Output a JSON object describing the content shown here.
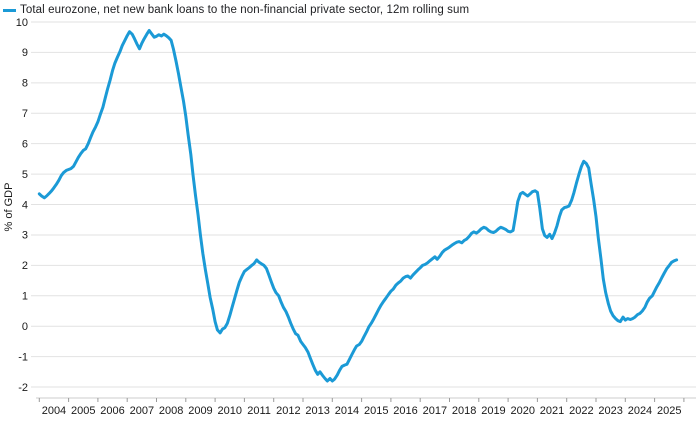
{
  "legend": {
    "label": "Total eurozone, net new bank loans to the non-financial private sector, 12m rolling sum"
  },
  "colors": {
    "line": "#1b9ad6",
    "grid": "#e2e2e2",
    "axis_line": "#cccccc",
    "tick": "#9a9a9a",
    "text": "#1a1a1a",
    "background": "#ffffff"
  },
  "chart_data": {
    "type": "line",
    "title": "Total eurozone, net new bank loans to the non-financial private sector, 12m rolling sum",
    "xlabel": "",
    "ylabel": "% of GDP",
    "xlim": [
      2004,
      2026
    ],
    "ylim": [
      -2,
      10
    ],
    "y_ticks": [
      10,
      9,
      8,
      7,
      6,
      5,
      4,
      3,
      2,
      1,
      0,
      -1,
      -2
    ],
    "x_tick_labels": [
      "2004",
      "2005",
      "2006",
      "2007",
      "2008",
      "2009",
      "2010",
      "2011",
      "2012",
      "2013",
      "2014",
      "2015",
      "2016",
      "2017",
      "2018",
      "2019",
      "2020",
      "2021",
      "2022",
      "2023",
      "2024",
      "2025"
    ],
    "grid": "horizontal",
    "legend_position": "top-left",
    "series": [
      {
        "name": "Total eurozone, net new bank loans to the non-financial private sector, 12m rolling sum",
        "color": "#1b9ad6",
        "points": [
          [
            2004.0,
            4.35
          ],
          [
            2004.08,
            4.28
          ],
          [
            2004.17,
            4.22
          ],
          [
            2004.25,
            4.28
          ],
          [
            2004.33,
            4.36
          ],
          [
            2004.42,
            4.45
          ],
          [
            2004.5,
            4.55
          ],
          [
            2004.58,
            4.66
          ],
          [
            2004.67,
            4.8
          ],
          [
            2004.75,
            4.95
          ],
          [
            2004.83,
            5.05
          ],
          [
            2004.92,
            5.12
          ],
          [
            2005.0,
            5.15
          ],
          [
            2005.08,
            5.18
          ],
          [
            2005.17,
            5.26
          ],
          [
            2005.25,
            5.4
          ],
          [
            2005.33,
            5.55
          ],
          [
            2005.42,
            5.68
          ],
          [
            2005.5,
            5.78
          ],
          [
            2005.58,
            5.83
          ],
          [
            2005.67,
            6.0
          ],
          [
            2005.75,
            6.2
          ],
          [
            2005.83,
            6.38
          ],
          [
            2005.92,
            6.55
          ],
          [
            2006.0,
            6.72
          ],
          [
            2006.08,
            6.95
          ],
          [
            2006.17,
            7.2
          ],
          [
            2006.25,
            7.5
          ],
          [
            2006.33,
            7.8
          ],
          [
            2006.42,
            8.1
          ],
          [
            2006.5,
            8.4
          ],
          [
            2006.58,
            8.65
          ],
          [
            2006.67,
            8.85
          ],
          [
            2006.75,
            9.02
          ],
          [
            2006.83,
            9.22
          ],
          [
            2006.92,
            9.4
          ],
          [
            2007.0,
            9.55
          ],
          [
            2007.08,
            9.68
          ],
          [
            2007.17,
            9.6
          ],
          [
            2007.25,
            9.45
          ],
          [
            2007.33,
            9.28
          ],
          [
            2007.42,
            9.12
          ],
          [
            2007.5,
            9.3
          ],
          [
            2007.58,
            9.45
          ],
          [
            2007.67,
            9.6
          ],
          [
            2007.75,
            9.72
          ],
          [
            2007.83,
            9.62
          ],
          [
            2007.92,
            9.5
          ],
          [
            2008.0,
            9.53
          ],
          [
            2008.08,
            9.58
          ],
          [
            2008.17,
            9.54
          ],
          [
            2008.25,
            9.6
          ],
          [
            2008.33,
            9.55
          ],
          [
            2008.42,
            9.48
          ],
          [
            2008.5,
            9.4
          ],
          [
            2008.58,
            9.1
          ],
          [
            2008.67,
            8.7
          ],
          [
            2008.75,
            8.3
          ],
          [
            2008.83,
            7.88
          ],
          [
            2008.92,
            7.4
          ],
          [
            2009.0,
            6.9
          ],
          [
            2009.08,
            6.3
          ],
          [
            2009.17,
            5.65
          ],
          [
            2009.25,
            4.95
          ],
          [
            2009.33,
            4.3
          ],
          [
            2009.42,
            3.65
          ],
          [
            2009.5,
            3.0
          ],
          [
            2009.58,
            2.4
          ],
          [
            2009.67,
            1.85
          ],
          [
            2009.75,
            1.4
          ],
          [
            2009.83,
            0.95
          ],
          [
            2009.92,
            0.55
          ],
          [
            2010.0,
            0.15
          ],
          [
            2010.08,
            -0.12
          ],
          [
            2010.17,
            -0.22
          ],
          [
            2010.25,
            -0.1
          ],
          [
            2010.33,
            -0.05
          ],
          [
            2010.42,
            0.1
          ],
          [
            2010.5,
            0.35
          ],
          [
            2010.58,
            0.62
          ],
          [
            2010.67,
            0.92
          ],
          [
            2010.75,
            1.2
          ],
          [
            2010.83,
            1.45
          ],
          [
            2010.92,
            1.65
          ],
          [
            2011.0,
            1.8
          ],
          [
            2011.08,
            1.86
          ],
          [
            2011.17,
            1.93
          ],
          [
            2011.25,
            2.0
          ],
          [
            2011.33,
            2.06
          ],
          [
            2011.42,
            2.18
          ],
          [
            2011.5,
            2.1
          ],
          [
            2011.58,
            2.05
          ],
          [
            2011.67,
            2.0
          ],
          [
            2011.75,
            1.9
          ],
          [
            2011.83,
            1.7
          ],
          [
            2011.92,
            1.45
          ],
          [
            2012.0,
            1.25
          ],
          [
            2012.08,
            1.1
          ],
          [
            2012.17,
            1.0
          ],
          [
            2012.25,
            0.8
          ],
          [
            2012.33,
            0.62
          ],
          [
            2012.42,
            0.48
          ],
          [
            2012.5,
            0.3
          ],
          [
            2012.58,
            0.1
          ],
          [
            2012.67,
            -0.1
          ],
          [
            2012.75,
            -0.25
          ],
          [
            2012.83,
            -0.3
          ],
          [
            2012.92,
            -0.5
          ],
          [
            2013.0,
            -0.6
          ],
          [
            2013.08,
            -0.7
          ],
          [
            2013.17,
            -0.85
          ],
          [
            2013.25,
            -1.05
          ],
          [
            2013.33,
            -1.25
          ],
          [
            2013.42,
            -1.45
          ],
          [
            2013.5,
            -1.58
          ],
          [
            2013.58,
            -1.5
          ],
          [
            2013.67,
            -1.62
          ],
          [
            2013.75,
            -1.72
          ],
          [
            2013.83,
            -1.8
          ],
          [
            2013.92,
            -1.72
          ],
          [
            2014.0,
            -1.8
          ],
          [
            2014.08,
            -1.74
          ],
          [
            2014.17,
            -1.6
          ],
          [
            2014.25,
            -1.45
          ],
          [
            2014.33,
            -1.32
          ],
          [
            2014.42,
            -1.28
          ],
          [
            2014.5,
            -1.25
          ],
          [
            2014.58,
            -1.1
          ],
          [
            2014.67,
            -0.93
          ],
          [
            2014.75,
            -0.78
          ],
          [
            2014.83,
            -0.65
          ],
          [
            2014.92,
            -0.6
          ],
          [
            2015.0,
            -0.5
          ],
          [
            2015.08,
            -0.35
          ],
          [
            2015.17,
            -0.18
          ],
          [
            2015.25,
            -0.02
          ],
          [
            2015.33,
            0.1
          ],
          [
            2015.42,
            0.25
          ],
          [
            2015.5,
            0.4
          ],
          [
            2015.58,
            0.55
          ],
          [
            2015.67,
            0.7
          ],
          [
            2015.75,
            0.82
          ],
          [
            2015.83,
            0.92
          ],
          [
            2015.92,
            1.05
          ],
          [
            2016.0,
            1.15
          ],
          [
            2016.08,
            1.22
          ],
          [
            2016.17,
            1.35
          ],
          [
            2016.25,
            1.42
          ],
          [
            2016.33,
            1.48
          ],
          [
            2016.42,
            1.58
          ],
          [
            2016.5,
            1.63
          ],
          [
            2016.58,
            1.65
          ],
          [
            2016.67,
            1.58
          ],
          [
            2016.75,
            1.68
          ],
          [
            2016.83,
            1.76
          ],
          [
            2016.92,
            1.85
          ],
          [
            2017.0,
            1.92
          ],
          [
            2017.08,
            2.0
          ],
          [
            2017.17,
            2.03
          ],
          [
            2017.25,
            2.08
          ],
          [
            2017.33,
            2.15
          ],
          [
            2017.42,
            2.22
          ],
          [
            2017.5,
            2.28
          ],
          [
            2017.58,
            2.2
          ],
          [
            2017.67,
            2.3
          ],
          [
            2017.75,
            2.42
          ],
          [
            2017.83,
            2.5
          ],
          [
            2017.92,
            2.55
          ],
          [
            2018.0,
            2.6
          ],
          [
            2018.08,
            2.66
          ],
          [
            2018.17,
            2.72
          ],
          [
            2018.25,
            2.76
          ],
          [
            2018.33,
            2.78
          ],
          [
            2018.42,
            2.74
          ],
          [
            2018.5,
            2.82
          ],
          [
            2018.58,
            2.86
          ],
          [
            2018.67,
            2.95
          ],
          [
            2018.75,
            3.05
          ],
          [
            2018.83,
            3.1
          ],
          [
            2018.92,
            3.06
          ],
          [
            2019.0,
            3.12
          ],
          [
            2019.08,
            3.2
          ],
          [
            2019.17,
            3.25
          ],
          [
            2019.25,
            3.22
          ],
          [
            2019.33,
            3.15
          ],
          [
            2019.42,
            3.1
          ],
          [
            2019.5,
            3.08
          ],
          [
            2019.58,
            3.12
          ],
          [
            2019.67,
            3.2
          ],
          [
            2019.75,
            3.25
          ],
          [
            2019.83,
            3.22
          ],
          [
            2019.92,
            3.18
          ],
          [
            2020.0,
            3.12
          ],
          [
            2020.08,
            3.1
          ],
          [
            2020.17,
            3.15
          ],
          [
            2020.25,
            3.6
          ],
          [
            2020.33,
            4.1
          ],
          [
            2020.42,
            4.35
          ],
          [
            2020.5,
            4.4
          ],
          [
            2020.58,
            4.34
          ],
          [
            2020.67,
            4.28
          ],
          [
            2020.75,
            4.35
          ],
          [
            2020.83,
            4.42
          ],
          [
            2020.92,
            4.45
          ],
          [
            2021.0,
            4.4
          ],
          [
            2021.08,
            3.9
          ],
          [
            2021.17,
            3.2
          ],
          [
            2021.25,
            2.98
          ],
          [
            2021.33,
            2.92
          ],
          [
            2021.42,
            3.02
          ],
          [
            2021.5,
            2.88
          ],
          [
            2021.58,
            3.05
          ],
          [
            2021.67,
            3.3
          ],
          [
            2021.75,
            3.6
          ],
          [
            2021.83,
            3.82
          ],
          [
            2021.92,
            3.9
          ],
          [
            2022.0,
            3.92
          ],
          [
            2022.08,
            3.95
          ],
          [
            2022.17,
            4.15
          ],
          [
            2022.25,
            4.4
          ],
          [
            2022.33,
            4.7
          ],
          [
            2022.42,
            5.0
          ],
          [
            2022.5,
            5.25
          ],
          [
            2022.58,
            5.42
          ],
          [
            2022.67,
            5.35
          ],
          [
            2022.75,
            5.2
          ],
          [
            2022.83,
            4.7
          ],
          [
            2022.92,
            4.15
          ],
          [
            2023.0,
            3.6
          ],
          [
            2023.08,
            2.9
          ],
          [
            2023.17,
            2.2
          ],
          [
            2023.25,
            1.55
          ],
          [
            2023.33,
            1.1
          ],
          [
            2023.42,
            0.75
          ],
          [
            2023.5,
            0.5
          ],
          [
            2023.58,
            0.35
          ],
          [
            2023.67,
            0.25
          ],
          [
            2023.75,
            0.18
          ],
          [
            2023.83,
            0.15
          ],
          [
            2023.92,
            0.3
          ],
          [
            2024.0,
            0.2
          ],
          [
            2024.08,
            0.25
          ],
          [
            2024.17,
            0.22
          ],
          [
            2024.25,
            0.25
          ],
          [
            2024.33,
            0.3
          ],
          [
            2024.42,
            0.38
          ],
          [
            2024.5,
            0.42
          ],
          [
            2024.58,
            0.5
          ],
          [
            2024.67,
            0.62
          ],
          [
            2024.75,
            0.8
          ],
          [
            2024.83,
            0.92
          ],
          [
            2024.92,
            1.0
          ],
          [
            2025.0,
            1.15
          ],
          [
            2025.08,
            1.3
          ],
          [
            2025.17,
            1.45
          ],
          [
            2025.25,
            1.6
          ],
          [
            2025.33,
            1.75
          ],
          [
            2025.42,
            1.9
          ],
          [
            2025.5,
            2.0
          ],
          [
            2025.58,
            2.1
          ],
          [
            2025.67,
            2.15
          ],
          [
            2025.75,
            2.18
          ]
        ]
      }
    ]
  }
}
